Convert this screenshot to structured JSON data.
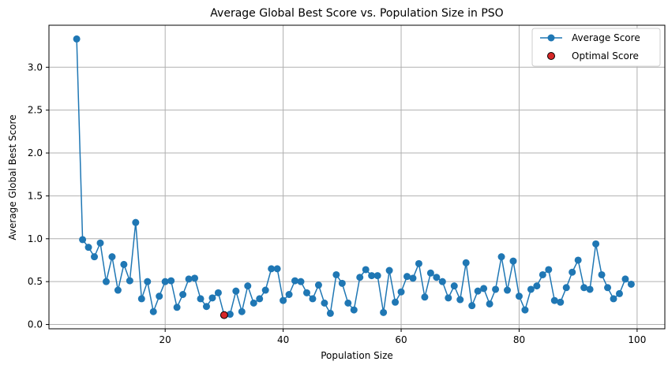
{
  "chart_data": {
    "type": "line",
    "title": "Average Global Best Score vs. Population Size in PSO",
    "xlabel": "Population Size",
    "ylabel": "Average Global Best Score",
    "xlim": [
      0.3,
      104.7
    ],
    "ylim": [
      -0.05,
      3.49
    ],
    "xticks": [
      20,
      40,
      60,
      80,
      100
    ],
    "yticks": [
      0.0,
      0.5,
      1.0,
      1.5,
      2.0,
      2.5,
      3.0
    ],
    "xtick_labels": [
      "20",
      "40",
      "60",
      "80",
      "100"
    ],
    "ytick_labels": [
      "0.0",
      "0.5",
      "1.0",
      "1.5",
      "2.0",
      "2.5",
      "3.0"
    ],
    "grid": true,
    "legend_position": "top-right",
    "series": [
      {
        "name": "Average Score",
        "kind": "line-marker",
        "color": "#1f77b4",
        "x": [
          5,
          6,
          7,
          8,
          9,
          10,
          11,
          12,
          13,
          14,
          15,
          16,
          17,
          18,
          19,
          20,
          21,
          22,
          23,
          24,
          25,
          26,
          27,
          28,
          29,
          30,
          31,
          32,
          33,
          34,
          35,
          36,
          37,
          38,
          39,
          40,
          41,
          42,
          43,
          44,
          45,
          46,
          47,
          48,
          49,
          50,
          51,
          52,
          53,
          54,
          55,
          56,
          57,
          58,
          59,
          60,
          61,
          62,
          63,
          64,
          65,
          66,
          67,
          68,
          69,
          70,
          71,
          72,
          73,
          74,
          75,
          76,
          77,
          78,
          79,
          80,
          81,
          82,
          83,
          84,
          85,
          86,
          87,
          88,
          89,
          90,
          91,
          92,
          93,
          94,
          95,
          96,
          97,
          98,
          99
        ],
        "y": [
          3.33,
          0.99,
          0.9,
          0.79,
          0.95,
          0.5,
          0.79,
          0.4,
          0.7,
          0.51,
          1.19,
          0.3,
          0.5,
          0.15,
          0.33,
          0.5,
          0.51,
          0.2,
          0.35,
          0.53,
          0.54,
          0.3,
          0.21,
          0.31,
          0.37,
          0.11,
          0.12,
          0.39,
          0.15,
          0.45,
          0.25,
          0.3,
          0.4,
          0.65,
          0.65,
          0.28,
          0.35,
          0.51,
          0.5,
          0.37,
          0.3,
          0.46,
          0.25,
          0.13,
          0.58,
          0.48,
          0.25,
          0.17,
          0.55,
          0.64,
          0.57,
          0.57,
          0.14,
          0.63,
          0.26,
          0.38,
          0.56,
          0.54,
          0.71,
          0.32,
          0.6,
          0.55,
          0.5,
          0.31,
          0.45,
          0.29,
          0.72,
          0.22,
          0.39,
          0.42,
          0.24,
          0.41,
          0.79,
          0.4,
          0.74,
          0.33,
          0.17,
          0.41,
          0.45,
          0.58,
          0.64,
          0.28,
          0.26,
          0.43,
          0.61,
          0.75,
          0.43,
          0.41,
          0.94,
          0.58,
          0.43,
          0.3,
          0.36,
          0.53,
          0.47
        ]
      },
      {
        "name": "Optimal Score",
        "kind": "scatter",
        "color": "#d62728",
        "x": [
          30
        ],
        "y": [
          0.11
        ]
      }
    ]
  }
}
